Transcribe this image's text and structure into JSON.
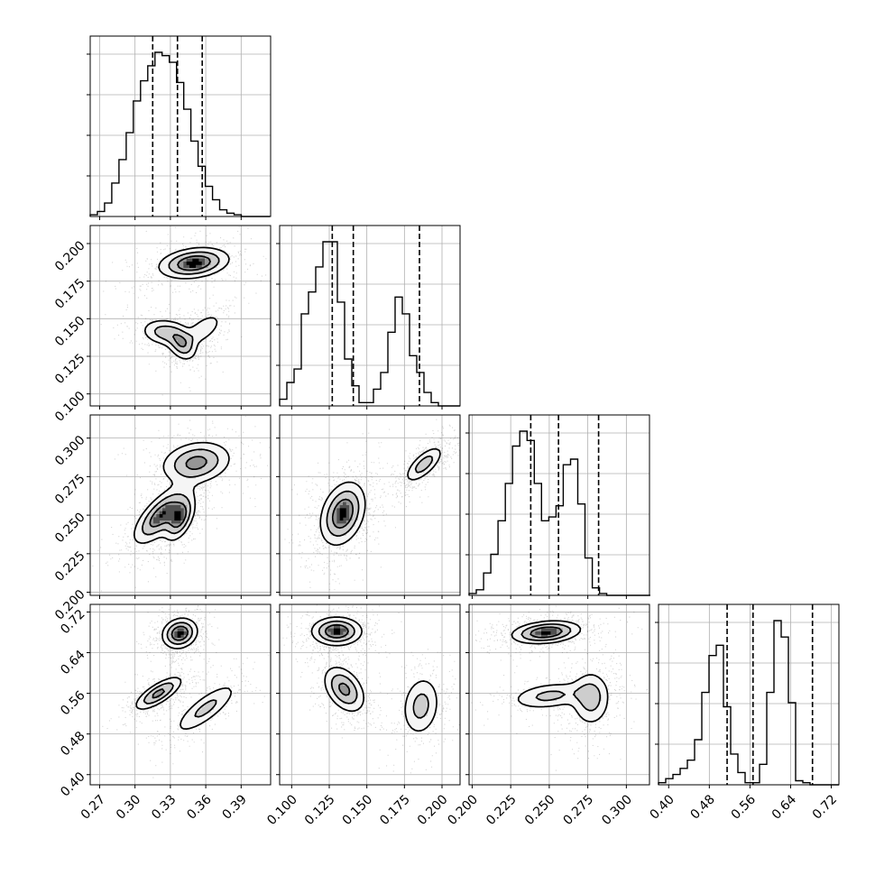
{
  "chart_data": {
    "type": "corner",
    "description_free": true,
    "variables": 4,
    "axis_ranges": [
      [
        0.262,
        0.415
      ],
      [
        0.092,
        0.212
      ],
      [
        0.198,
        0.315
      ],
      [
        0.38,
        0.735
      ]
    ],
    "tick_labels": [
      [
        "0.27",
        "0.30",
        "0.33",
        "0.36",
        "0.39"
      ],
      [
        "0.100",
        "0.125",
        "0.150",
        "0.175",
        "0.200"
      ],
      [
        "0.200",
        "0.225",
        "0.250",
        "0.275",
        "0.300"
      ],
      [
        "0.40",
        "0.48",
        "0.56",
        "0.64",
        "0.72"
      ]
    ],
    "tick_values": [
      [
        0.27,
        0.3,
        0.33,
        0.36,
        0.39
      ],
      [
        0.1,
        0.125,
        0.15,
        0.175,
        0.2
      ],
      [
        0.2,
        0.225,
        0.25,
        0.275,
        0.3
      ],
      [
        0.4,
        0.48,
        0.56,
        0.64,
        0.72
      ]
    ],
    "grid": true,
    "histograms": [
      {
        "bin_edges_start": 0.262,
        "bin_width": 0.0061,
        "counts": [
          1,
          3,
          8,
          20,
          34,
          50,
          69,
          81,
          90,
          98,
          96,
          92,
          80,
          64,
          45,
          30,
          18,
          10,
          4,
          2,
          1,
          0,
          0,
          0,
          0
        ],
        "quantiles": [
          0.315,
          0.336,
          0.357
        ]
      },
      {
        "bin_edges_start": 0.092,
        "bin_width": 0.0048,
        "counts": [
          4,
          14,
          22,
          55,
          68,
          83,
          98,
          98,
          62,
          28,
          12,
          2,
          2,
          10,
          20,
          44,
          65,
          55,
          30,
          20,
          8,
          2,
          0,
          0,
          0
        ],
        "quantiles": [
          0.127,
          0.141,
          0.185
        ]
      },
      {
        "bin_edges_start": 0.198,
        "bin_width": 0.0047,
        "counts": [
          1,
          3,
          12,
          22,
          40,
          60,
          80,
          88,
          83,
          60,
          40,
          42,
          48,
          70,
          73,
          49,
          20,
          4,
          1,
          0,
          0,
          0,
          0,
          0,
          0
        ],
        "quantiles": [
          0.238,
          0.256,
          0.282
        ]
      },
      {
        "bin_edges_start": 0.38,
        "bin_width": 0.0142,
        "counts": [
          1,
          3,
          5,
          8,
          12,
          22,
          45,
          63,
          68,
          38,
          15,
          6,
          1,
          1,
          10,
          45,
          80,
          72,
          40,
          2,
          1,
          0,
          0,
          0,
          0
        ],
        "quantiles": [
          0.515,
          0.566,
          0.683
        ]
      }
    ],
    "density_modes": [
      {
        "row": 1,
        "col": 0,
        "blobs": [
          {
            "cx": 0.35,
            "cy": 0.187,
            "sx": 0.016,
            "sy": 0.0055,
            "rho": 0.25,
            "w": 0.55
          },
          {
            "cx": 0.325,
            "cy": 0.141,
            "sx": 0.011,
            "sy": 0.005,
            "rho": -0.15,
            "w": 0.3
          },
          {
            "cx": 0.34,
            "cy": 0.133,
            "sx": 0.007,
            "sy": 0.006,
            "rho": -0.3,
            "w": 0.35
          },
          {
            "cx": 0.358,
            "cy": 0.143,
            "sx": 0.009,
            "sy": 0.006,
            "rho": 0.6,
            "w": 0.22
          }
        ]
      },
      {
        "row": 2,
        "col": 0,
        "blobs": [
          {
            "cx": 0.352,
            "cy": 0.284,
            "sx": 0.016,
            "sy": 0.0075,
            "rho": 0.2,
            "w": 0.48
          },
          {
            "cx": 0.322,
            "cy": 0.25,
            "sx": 0.0125,
            "sy": 0.01,
            "rho": 0.7,
            "w": 0.55
          },
          {
            "cx": 0.338,
            "cy": 0.248,
            "sx": 0.007,
            "sy": 0.008,
            "rho": 0.5,
            "w": 0.5
          }
        ]
      },
      {
        "row": 2,
        "col": 1,
        "blobs": [
          {
            "cx": 0.188,
            "cy": 0.283,
            "sx": 0.007,
            "sy": 0.0065,
            "rho": 0.7,
            "w": 0.5
          },
          {
            "cx": 0.134,
            "cy": 0.251,
            "sx": 0.008,
            "sy": 0.011,
            "rho": 0.3,
            "w": 0.85
          }
        ]
      },
      {
        "row": 3,
        "col": 0,
        "blobs": [
          {
            "cx": 0.338,
            "cy": 0.678,
            "sx": 0.008,
            "sy": 0.016,
            "rho": 0.15,
            "w": 0.7
          },
          {
            "cx": 0.32,
            "cy": 0.56,
            "sx": 0.011,
            "sy": 0.018,
            "rho": 0.75,
            "w": 0.55
          },
          {
            "cx": 0.36,
            "cy": 0.53,
            "sx": 0.015,
            "sy": 0.028,
            "rho": 0.8,
            "w": 0.35
          }
        ]
      },
      {
        "row": 3,
        "col": 1,
        "blobs": [
          {
            "cx": 0.13,
            "cy": 0.682,
            "sx": 0.009,
            "sy": 0.015,
            "rho": 0.0,
            "w": 0.7
          },
          {
            "cx": 0.135,
            "cy": 0.568,
            "sx": 0.0075,
            "sy": 0.025,
            "rho": -0.4,
            "w": 0.55
          },
          {
            "cx": 0.186,
            "cy": 0.535,
            "sx": 0.007,
            "sy": 0.033,
            "rho": 0.15,
            "w": 0.38
          }
        ]
      },
      {
        "row": 3,
        "col": 2,
        "blobs": [
          {
            "cx": 0.248,
            "cy": 0.68,
            "sx": 0.012,
            "sy": 0.012,
            "rho": 0.25,
            "w": 0.7
          },
          {
            "cx": 0.25,
            "cy": 0.555,
            "sx": 0.014,
            "sy": 0.015,
            "rho": 0.3,
            "w": 0.35
          },
          {
            "cx": 0.277,
            "cy": 0.55,
            "sx": 0.007,
            "sy": 0.03,
            "rho": 0.0,
            "w": 0.4
          }
        ]
      }
    ],
    "contour_levels_fraction_of_peak": [
      0.18,
      0.42,
      0.7
    ],
    "scatter_points_per_panel": 1400
  }
}
